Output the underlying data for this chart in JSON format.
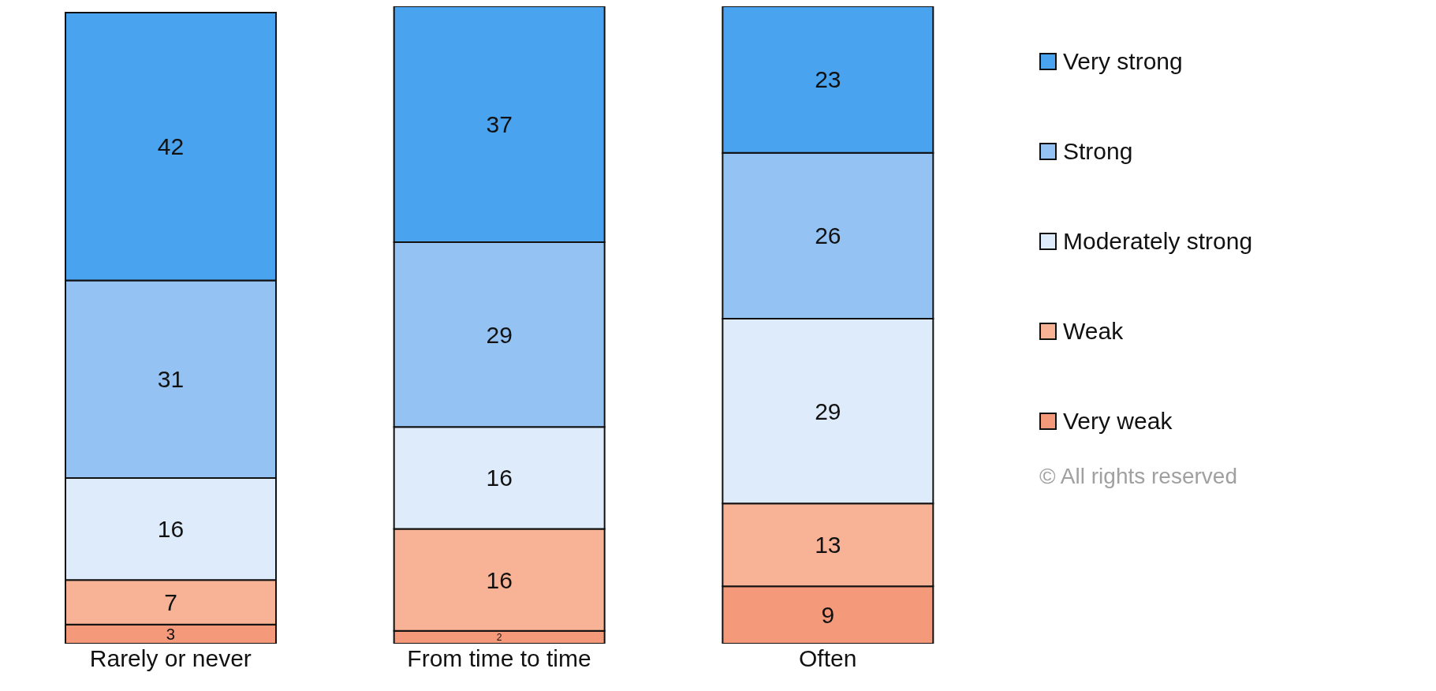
{
  "chart_data": {
    "type": "bar",
    "stacked": true,
    "data_labels": true,
    "legend": "right",
    "categories": [
      "Rarely or never",
      "From time to time",
      "Often"
    ],
    "series": [
      {
        "name": "Very weak",
        "color": "#f4997a",
        "values": [
          3,
          2,
          9
        ]
      },
      {
        "name": "Weak",
        "color": "#f8b396",
        "values": [
          7,
          16,
          13
        ]
      },
      {
        "name": "Moderately strong",
        "color": "#deebfb",
        "values": [
          16,
          16,
          29
        ]
      },
      {
        "name": "Strong",
        "color": "#94c3f3",
        "values": [
          31,
          29,
          26
        ]
      },
      {
        "name": "Very strong",
        "color": "#4aa3ef",
        "values": [
          42,
          37,
          23
        ]
      }
    ],
    "annotations": [
      "© All rights reserved"
    ]
  }
}
